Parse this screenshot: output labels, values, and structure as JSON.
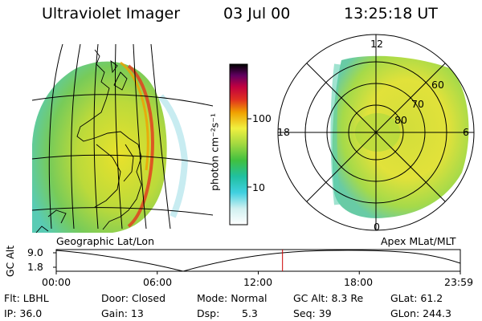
{
  "header": {
    "instrument": "Ultraviolet Imager",
    "date": "03 Jul 00",
    "time": "13:25:18 UT"
  },
  "colorbar": {
    "unit_label": "photon cm⁻²s⁻¹",
    "ticks": [
      "100",
      "10"
    ]
  },
  "geo_map": {
    "label": "Geographic Lat/Lon"
  },
  "polar_map": {
    "label": "Apex MLat/MLT",
    "mlt_labels": [
      "12",
      "18",
      "6",
      "0"
    ],
    "lat_labels": [
      "60",
      "70",
      "80"
    ]
  },
  "altitude_plot": {
    "ylabel": "GC Alt",
    "yticks": [
      "9.0",
      "1.8"
    ],
    "xticks": [
      "00:00",
      "06:00",
      "12:00",
      "18:00",
      "23:59"
    ],
    "marker_fraction": 0.56
  },
  "footer": {
    "flt": "Flt: LBHL",
    "ip": "IP: 36.0",
    "door": "Door: Closed",
    "gain": "Gain: 13",
    "mode": "Mode: Normal",
    "dsp_label": "Dsp:",
    "dsp_value": "5.3",
    "gcalt": "GC Alt: 8.3 Re",
    "seq": "Seq: 39",
    "glat": "GLat: 61.2",
    "glon": "GLon: 244.3"
  },
  "colors": {
    "orbit": "#000000",
    "marker": "#cc0000"
  }
}
